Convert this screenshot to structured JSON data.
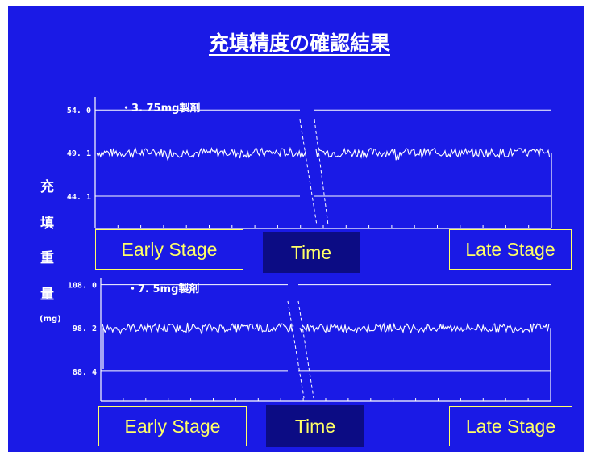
{
  "slide": {
    "title": "充填精度の確認結果",
    "y_axis_chars": [
      "充",
      "填",
      "重",
      "量"
    ],
    "y_axis_unit": "(mg)",
    "colors": {
      "background": "#1a1ae6",
      "trace": "#ffffff",
      "box_text": "#ffff66",
      "time_box": "#0c0c84"
    }
  },
  "chart_data": [
    {
      "type": "line",
      "title": "・3. 75mg製剤",
      "yticks": [
        "54. 0",
        "49. 1",
        "44. 1"
      ],
      "reference_lines": [
        54.0,
        49.1,
        44.1
      ],
      "ylim": [
        40.4,
        55.5
      ],
      "series": [
        {
          "mean": 49.1,
          "segments": [
            "early",
            "late"
          ]
        }
      ],
      "labels": {
        "left": "Early Stage",
        "center": "Time",
        "right": "Late Stage"
      }
    },
    {
      "type": "line",
      "title": "・7. 5mg製剤",
      "yticks": [
        "108. 0",
        "98. 2",
        "88. 4"
      ],
      "reference_lines": [
        108.0,
        98.2,
        88.4
      ],
      "ylim": [
        81.6,
        109.4
      ],
      "series": [
        {
          "mean": 98.2,
          "segments": [
            "early",
            "late"
          ]
        }
      ],
      "labels": {
        "left": "Early Stage",
        "center": "Time",
        "right": "Late Stage"
      }
    }
  ]
}
